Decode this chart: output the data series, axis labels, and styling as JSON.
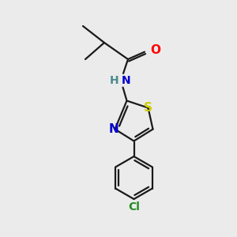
{
  "background_color": "#ebebeb",
  "bond_color": "#1a1a1a",
  "atom_colors": {
    "O": "#ff0000",
    "N": "#0000cd",
    "S": "#cccc00",
    "Cl": "#228b22",
    "H": "#4a8a8a",
    "C": "#1a1a1a"
  },
  "figsize": [
    3.0,
    3.0
  ],
  "dpi": 100,
  "lw": 1.6
}
